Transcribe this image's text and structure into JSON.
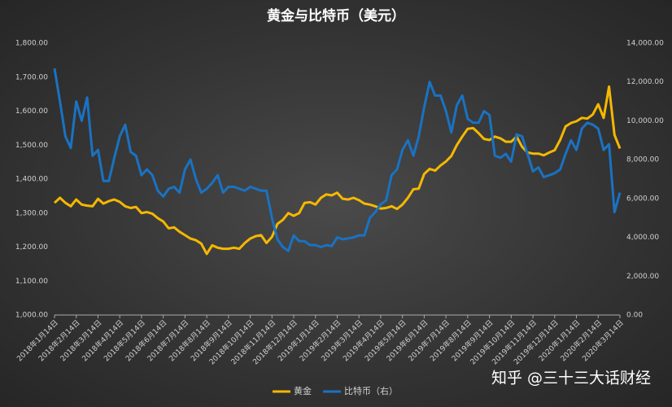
{
  "chart_data": {
    "type": "line",
    "title": "黄金与比特币（美元）",
    "watermark": "知乎 @三十三大话财经",
    "categories": [
      "2018年1月14日",
      null,
      null,
      null,
      "2018年2月14日",
      null,
      null,
      null,
      "2018年3月14日",
      null,
      null,
      null,
      "2018年4月14日",
      null,
      null,
      null,
      "2018年5月14日",
      null,
      null,
      null,
      "2018年6月14日",
      null,
      null,
      null,
      "2018年7月14日",
      null,
      null,
      null,
      "2018年8月14日",
      null,
      null,
      null,
      "2018年9月14日",
      null,
      null,
      null,
      "2018年10月14日",
      null,
      null,
      null,
      "2018年11月14日",
      null,
      null,
      null,
      "2018年12月14日",
      null,
      null,
      null,
      "2019年1月14日",
      null,
      null,
      null,
      "2019年2月14日",
      null,
      null,
      null,
      "2019年3月14日",
      null,
      null,
      null,
      "2019年4月14日",
      null,
      null,
      null,
      "2019年5月14日",
      null,
      null,
      null,
      "2019年6月14日",
      null,
      null,
      null,
      "2019年7月14日",
      null,
      null,
      null,
      "2019年8月14日",
      null,
      null,
      null,
      "2019年9月14日",
      null,
      null,
      null,
      "2019年10月14日",
      null,
      null,
      null,
      "2019年11月14日",
      null,
      null,
      null,
      "2019年12月14日",
      null,
      null,
      null,
      "2020年1月14日",
      null,
      null,
      null,
      "2020年2月14日",
      null,
      null,
      null,
      "2020年3月14日"
    ],
    "series": [
      {
        "name": "黄金",
        "color": "#f5b800",
        "values": [
          1330,
          1345,
          1330,
          1320,
          1340,
          1325,
          1322,
          1320,
          1342,
          1328,
          1335,
          1340,
          1333,
          1320,
          1315,
          1318,
          1300,
          1303,
          1298,
          1285,
          1275,
          1255,
          1258,
          1245,
          1235,
          1225,
          1220,
          1210,
          1180,
          1205,
          1198,
          1195,
          1195,
          1198,
          1195,
          1212,
          1225,
          1232,
          1235,
          1212,
          1230,
          1268,
          1280,
          1300,
          1292,
          1300,
          1330,
          1332,
          1325,
          1345,
          1355,
          1352,
          1360,
          1342,
          1340,
          1345,
          1338,
          1328,
          1325,
          1320,
          1313,
          1315,
          1320,
          1312,
          1325,
          1345,
          1370,
          1372,
          1415,
          1430,
          1425,
          1440,
          1452,
          1468,
          1500,
          1525,
          1548,
          1550,
          1535,
          1518,
          1515,
          1525,
          1520,
          1510,
          1510,
          1525,
          1495,
          1478,
          1475,
          1475,
          1470,
          1478,
          1485,
          1515,
          1555,
          1565,
          1570,
          1580,
          1578,
          1590,
          1620,
          1580,
          1672,
          1530,
          1490
        ]
      },
      {
        "name": "比特币（右）",
        "color": "#1a72c2",
        "axis": "y2",
        "values": [
          12700,
          11000,
          9200,
          8600,
          11000,
          10000,
          11200,
          8200,
          8500,
          6900,
          6900,
          8100,
          9200,
          9800,
          8400,
          8200,
          7200,
          7500,
          7200,
          6400,
          6100,
          6500,
          6600,
          6300,
          7500,
          8000,
          7000,
          6300,
          6500,
          6800,
          7200,
          6300,
          6600,
          6600,
          6500,
          6400,
          6600,
          6500,
          6400,
          6400,
          5000,
          3900,
          3500,
          3300,
          4100,
          3800,
          3800,
          3600,
          3600,
          3500,
          3600,
          3550,
          4000,
          3900,
          3950,
          4000,
          4100,
          4100,
          5000,
          5300,
          5700,
          5900,
          7200,
          7500,
          8500,
          9000,
          8200,
          9200,
          10700,
          12000,
          11300,
          11300,
          10500,
          9400,
          10800,
          11300,
          10100,
          9900,
          9900,
          10500,
          10300,
          8200,
          8100,
          8300,
          7900,
          9300,
          9200,
          8300,
          7400,
          7600,
          7100,
          7200,
          7300,
          7500,
          8300,
          9000,
          8500,
          9600,
          9900,
          9800,
          9600,
          8500,
          8800,
          5300,
          6300
        ]
      }
    ],
    "ylim": [
      1000,
      1800
    ],
    "yticks": [
      {
        "value": 1000,
        "label": "1,000.00"
      },
      {
        "value": 1100,
        "label": "1,100.00"
      },
      {
        "value": 1200,
        "label": "1,200.00"
      },
      {
        "value": 1300,
        "label": "1,300.00"
      },
      {
        "value": 1400,
        "label": "1,400.00"
      },
      {
        "value": 1500,
        "label": "1,500.00"
      },
      {
        "value": 1600,
        "label": "1,600.00"
      },
      {
        "value": 1700,
        "label": "1,700.00"
      },
      {
        "value": 1800,
        "label": "1,800.00"
      }
    ],
    "y2lim": [
      0,
      14000
    ],
    "y2ticks": [
      {
        "value": 0,
        "label": "0.00"
      },
      {
        "value": 2000,
        "label": "2,000.00"
      },
      {
        "value": 4000,
        "label": "4,000.00"
      },
      {
        "value": 6000,
        "label": "6,000.00"
      },
      {
        "value": 8000,
        "label": "8,000.00"
      },
      {
        "value": 10000,
        "label": "10,000.00"
      },
      {
        "value": 12000,
        "label": "12,000.00"
      },
      {
        "value": 14000,
        "label": "14,000.00"
      }
    ],
    "grid": false,
    "legend": "bottom"
  }
}
